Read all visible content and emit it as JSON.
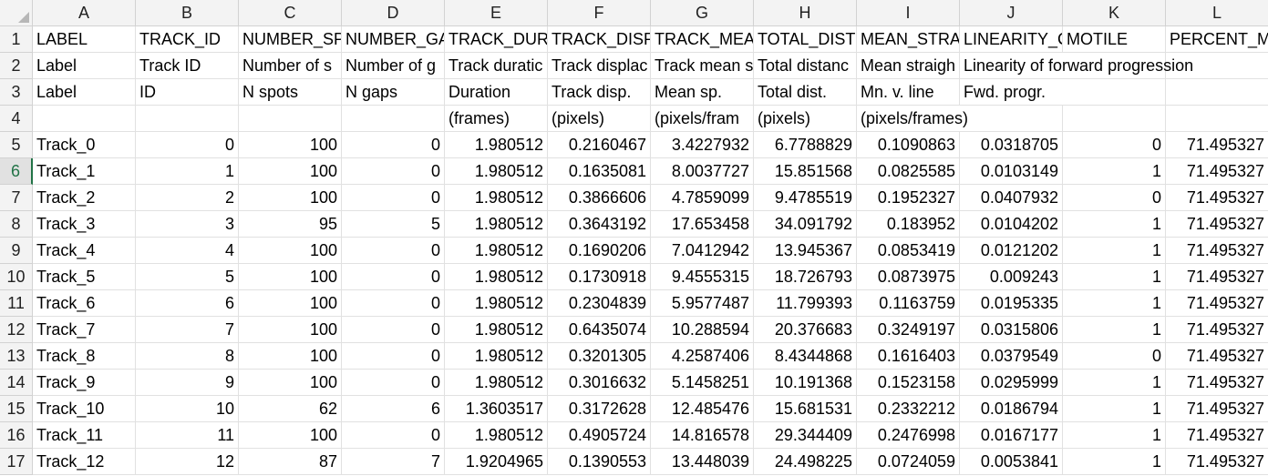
{
  "columns": [
    "A",
    "B",
    "C",
    "D",
    "E",
    "F",
    "G",
    "H",
    "I",
    "J",
    "K",
    "L"
  ],
  "rows": [
    {
      "num": "1",
      "cells": [
        "LABEL",
        "TRACK_ID",
        "NUMBER_SP",
        "NUMBER_GA",
        "TRACK_DUR",
        "TRACK_DISP",
        "TRACK_MEA",
        "TOTAL_DIST",
        "MEAN_STRA",
        "LINEARITY_C",
        "MOTILE",
        "PERCENT_M"
      ]
    },
    {
      "num": "2",
      "cells": [
        "Label",
        "Track ID",
        "Number of s",
        "Number of g",
        "Track duratic",
        "Track displac",
        "Track mean s",
        "Total distanc",
        "Mean straigh",
        "Linearity of forward progression",
        "",
        ""
      ]
    },
    {
      "num": "3",
      "cells": [
        "Label",
        "ID",
        "N spots",
        "N gaps",
        "Duration",
        "Track disp.",
        "Mean sp.",
        "Total dist.",
        "Mn. v. line",
        "Fwd. progr.",
        "",
        ""
      ]
    },
    {
      "num": "4",
      "cells": [
        "",
        "",
        "",
        "",
        "(frames)",
        "(pixels)",
        "(pixels/fram",
        "(pixels)",
        "(pixels/frames)",
        "",
        "",
        ""
      ]
    },
    {
      "num": "5",
      "cells": [
        "Track_0",
        "0",
        "100",
        "0",
        "1.980512",
        "0.2160467",
        "3.4227932",
        "6.7788829",
        "0.1090863",
        "0.0318705",
        "0",
        "71.495327"
      ]
    },
    {
      "num": "6",
      "cells": [
        "Track_1",
        "1",
        "100",
        "0",
        "1.980512",
        "0.1635081",
        "8.0037727",
        "15.851568",
        "0.0825585",
        "0.0103149",
        "1",
        "71.495327"
      ]
    },
    {
      "num": "7",
      "cells": [
        "Track_2",
        "2",
        "100",
        "0",
        "1.980512",
        "0.3866606",
        "4.7859099",
        "9.4785519",
        "0.1952327",
        "0.0407932",
        "0",
        "71.495327"
      ]
    },
    {
      "num": "8",
      "cells": [
        "Track_3",
        "3",
        "95",
        "5",
        "1.980512",
        "0.3643192",
        "17.653458",
        "34.091792",
        "0.183952",
        "0.0104202",
        "1",
        "71.495327"
      ]
    },
    {
      "num": "9",
      "cells": [
        "Track_4",
        "4",
        "100",
        "0",
        "1.980512",
        "0.1690206",
        "7.0412942",
        "13.945367",
        "0.0853419",
        "0.0121202",
        "1",
        "71.495327"
      ]
    },
    {
      "num": "10",
      "cells": [
        "Track_5",
        "5",
        "100",
        "0",
        "1.980512",
        "0.1730918",
        "9.4555315",
        "18.726793",
        "0.0873975",
        "0.009243",
        "1",
        "71.495327"
      ]
    },
    {
      "num": "11",
      "cells": [
        "Track_6",
        "6",
        "100",
        "0",
        "1.980512",
        "0.2304839",
        "5.9577487",
        "11.799393",
        "0.1163759",
        "0.0195335",
        "1",
        "71.495327"
      ]
    },
    {
      "num": "12",
      "cells": [
        "Track_7",
        "7",
        "100",
        "0",
        "1.980512",
        "0.6435074",
        "10.288594",
        "20.376683",
        "0.3249197",
        "0.0315806",
        "1",
        "71.495327"
      ]
    },
    {
      "num": "13",
      "cells": [
        "Track_8",
        "8",
        "100",
        "0",
        "1.980512",
        "0.3201305",
        "4.2587406",
        "8.4344868",
        "0.1616403",
        "0.0379549",
        "0",
        "71.495327"
      ]
    },
    {
      "num": "14",
      "cells": [
        "Track_9",
        "9",
        "100",
        "0",
        "1.980512",
        "0.3016632",
        "5.1458251",
        "10.191368",
        "0.1523158",
        "0.0295999",
        "1",
        "71.495327"
      ]
    },
    {
      "num": "15",
      "cells": [
        "Track_10",
        "10",
        "62",
        "6",
        "1.3603517",
        "0.3172628",
        "12.485476",
        "15.681531",
        "0.2332212",
        "0.0186794",
        "1",
        "71.495327"
      ]
    },
    {
      "num": "16",
      "cells": [
        "Track_11",
        "11",
        "100",
        "0",
        "1.980512",
        "0.4905724",
        "14.816578",
        "29.344409",
        "0.2476998",
        "0.0167177",
        "1",
        "71.495327"
      ]
    },
    {
      "num": "17",
      "cells": [
        "Track_12",
        "12",
        "87",
        "7",
        "1.9204965",
        "0.1390553",
        "13.448039",
        "24.498225",
        "0.0724059",
        "0.0053841",
        "1",
        "71.495327"
      ]
    }
  ],
  "selected_row": "6",
  "colors": {
    "header_bg": "#f3f3f3",
    "grid": "#e1e1e1",
    "selected_accent": "#217346"
  }
}
